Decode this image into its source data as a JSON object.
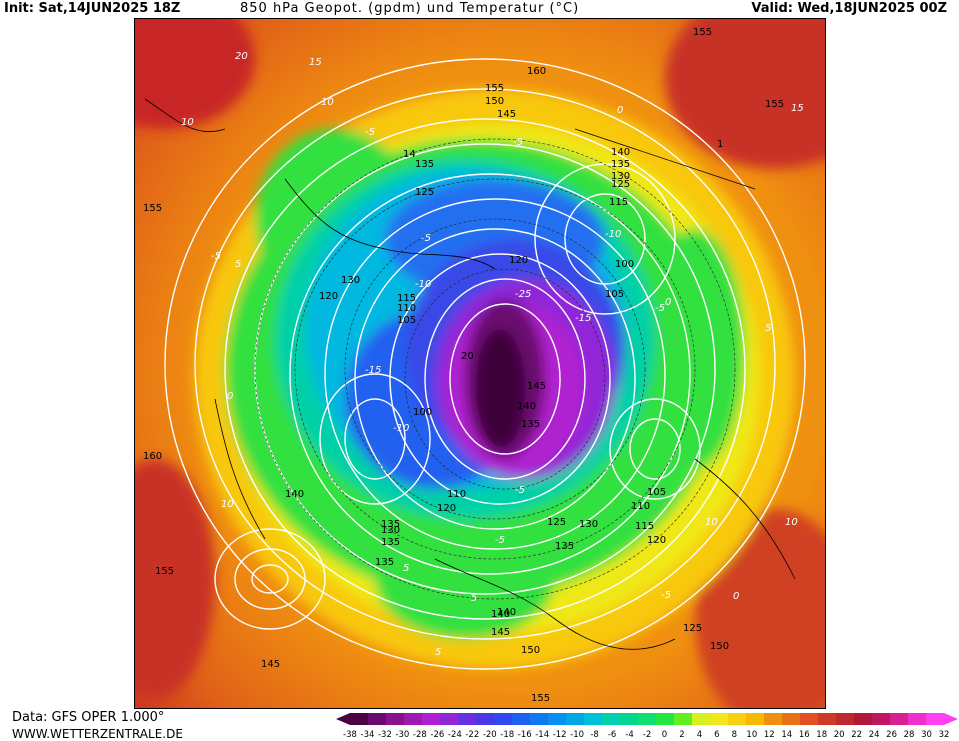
{
  "header": {
    "init": "Init: Sat,14JUN2025 18Z",
    "title": "850 hPa Geopot. (gpdm) und Temperatur (°C)",
    "valid": "Valid: Wed,18JUN2025 00Z"
  },
  "footer": {
    "source": "Data: GFS OPER 1.000°",
    "site": "WWW.WETTERZENTRALE.DE"
  },
  "legend": {
    "ticks": [
      "-38",
      "-34",
      "-32",
      "-30",
      "-28",
      "-26",
      "-24",
      "-22",
      "-20",
      "-18",
      "-16",
      "-14",
      "-12",
      "-10",
      "-8",
      "-6",
      "-4",
      "-2",
      "0",
      "2",
      "4",
      "6",
      "8",
      "10",
      "12",
      "14",
      "16",
      "18",
      "20",
      "22",
      "24",
      "26",
      "28",
      "30",
      "32"
    ],
    "colors": [
      "#4a0044",
      "#6a0a6e",
      "#8a1090",
      "#a018b0",
      "#b020d0",
      "#9028d8",
      "#6a30e0",
      "#4a38e8",
      "#3048f0",
      "#2060f0",
      "#1078f0",
      "#0890f0",
      "#00a8e8",
      "#00c0d8",
      "#00d0b0",
      "#00d890",
      "#10e070",
      "#20e840",
      "#60f020",
      "#d8f020",
      "#f0e818",
      "#f8d010",
      "#f8b808",
      "#f09010",
      "#e87018",
      "#e05020",
      "#d03828",
      "#c02830",
      "#b01838",
      "#c01860",
      "#d82090",
      "#f030c8",
      "#ff40f0"
    ]
  },
  "map": {
    "geopotential_labels": [
      {
        "text": "155"
      },
      {
        "text": "160"
      },
      {
        "text": "155"
      },
      {
        "text": "150"
      },
      {
        "text": "145"
      },
      {
        "text": "155"
      },
      {
        "text": "1"
      },
      {
        "text": "14"
      },
      {
        "text": "135"
      },
      {
        "text": "140"
      },
      {
        "text": "135"
      },
      {
        "text": "130"
      },
      {
        "text": "125"
      },
      {
        "text": "125"
      },
      {
        "text": "115"
      },
      {
        "text": "155"
      },
      {
        "text": "120"
      },
      {
        "text": "100"
      },
      {
        "text": "130"
      },
      {
        "text": "120"
      },
      {
        "text": "105"
      },
      {
        "text": "115"
      },
      {
        "text": "110"
      },
      {
        "text": "105"
      },
      {
        "text": "20"
      },
      {
        "text": "145"
      },
      {
        "text": "140"
      },
      {
        "text": "135"
      },
      {
        "text": "100"
      },
      {
        "text": "160"
      },
      {
        "text": "140"
      },
      {
        "text": "110"
      },
      {
        "text": "120"
      },
      {
        "text": "105"
      },
      {
        "text": "110"
      },
      {
        "text": "115"
      },
      {
        "text": "120"
      },
      {
        "text": "125"
      },
      {
        "text": "130"
      },
      {
        "text": "135"
      },
      {
        "text": "130"
      },
      {
        "text": "135"
      },
      {
        "text": "135"
      },
      {
        "text": "140"
      },
      {
        "text": "135"
      },
      {
        "text": "155"
      },
      {
        "text": "140"
      },
      {
        "text": "145"
      },
      {
        "text": "150"
      },
      {
        "text": "145"
      },
      {
        "text": "155"
      },
      {
        "text": "125"
      },
      {
        "text": "150"
      }
    ],
    "temperature_labels": [
      "20",
      "15",
      "10",
      "-5",
      "0",
      "-5",
      "5",
      "-10",
      "-15",
      "-5",
      "-10",
      "-25",
      "-15",
      "-5",
      "-10",
      "-5",
      "5",
      "10",
      "-5",
      "0",
      "5",
      "-5",
      "10",
      "5",
      "0",
      "15",
      "10",
      "-5",
      "0",
      "10",
      "5"
    ]
  }
}
